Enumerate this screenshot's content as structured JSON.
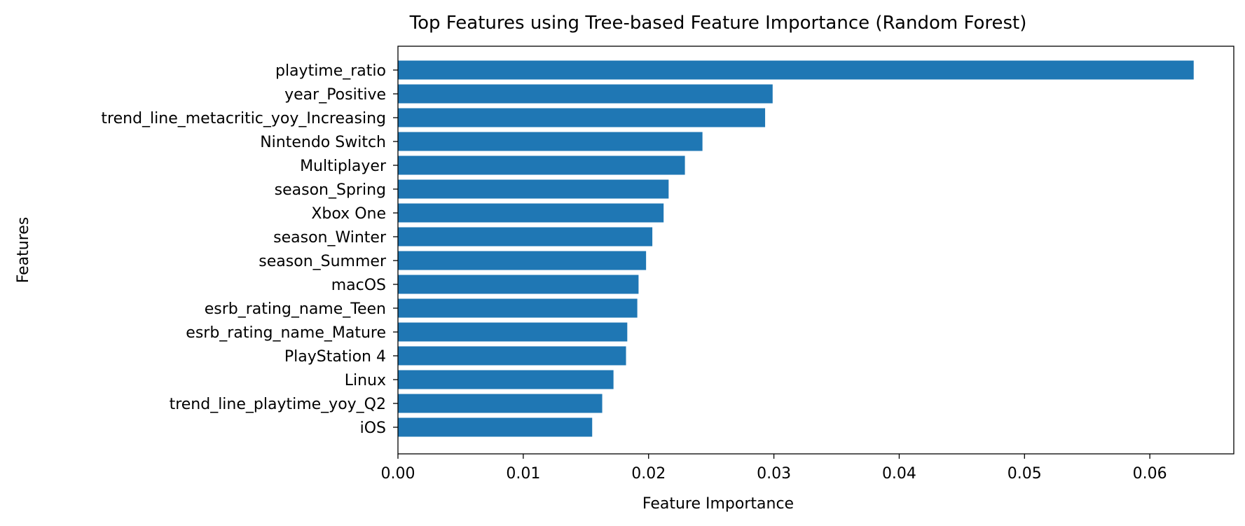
{
  "chart_data": {
    "type": "bar",
    "orientation": "horizontal",
    "title": "Top Features using Tree-based Feature Importance (Random Forest)",
    "xlabel": "Feature Importance",
    "ylabel": "Features",
    "categories": [
      "playtime_ratio",
      "year_Positive",
      "trend_line_metacritic_yoy_Increasing",
      "Nintendo Switch",
      "Multiplayer",
      "season_Spring",
      "Xbox One",
      "season_Winter",
      "season_Summer",
      "macOS",
      "esrb_rating_name_Teen",
      "esrb_rating_name_Mature",
      "PlayStation 4",
      "Linux",
      "trend_line_playtime_yoy_Q2",
      "iOS"
    ],
    "values": [
      0.0635,
      0.0299,
      0.0293,
      0.0243,
      0.0229,
      0.0216,
      0.0212,
      0.0203,
      0.0198,
      0.0192,
      0.0191,
      0.0183,
      0.0182,
      0.0172,
      0.0163,
      0.0155
    ],
    "xlim": [
      0,
      0.0667
    ],
    "xticks": [
      "0.00",
      "0.01",
      "0.02",
      "0.03",
      "0.04",
      "0.05",
      "0.06"
    ],
    "xtick_values": [
      0,
      0.01,
      0.02,
      0.03,
      0.04,
      0.05,
      0.06
    ],
    "bar_color": "#1f77b4",
    "grid": false,
    "legend": "none"
  }
}
